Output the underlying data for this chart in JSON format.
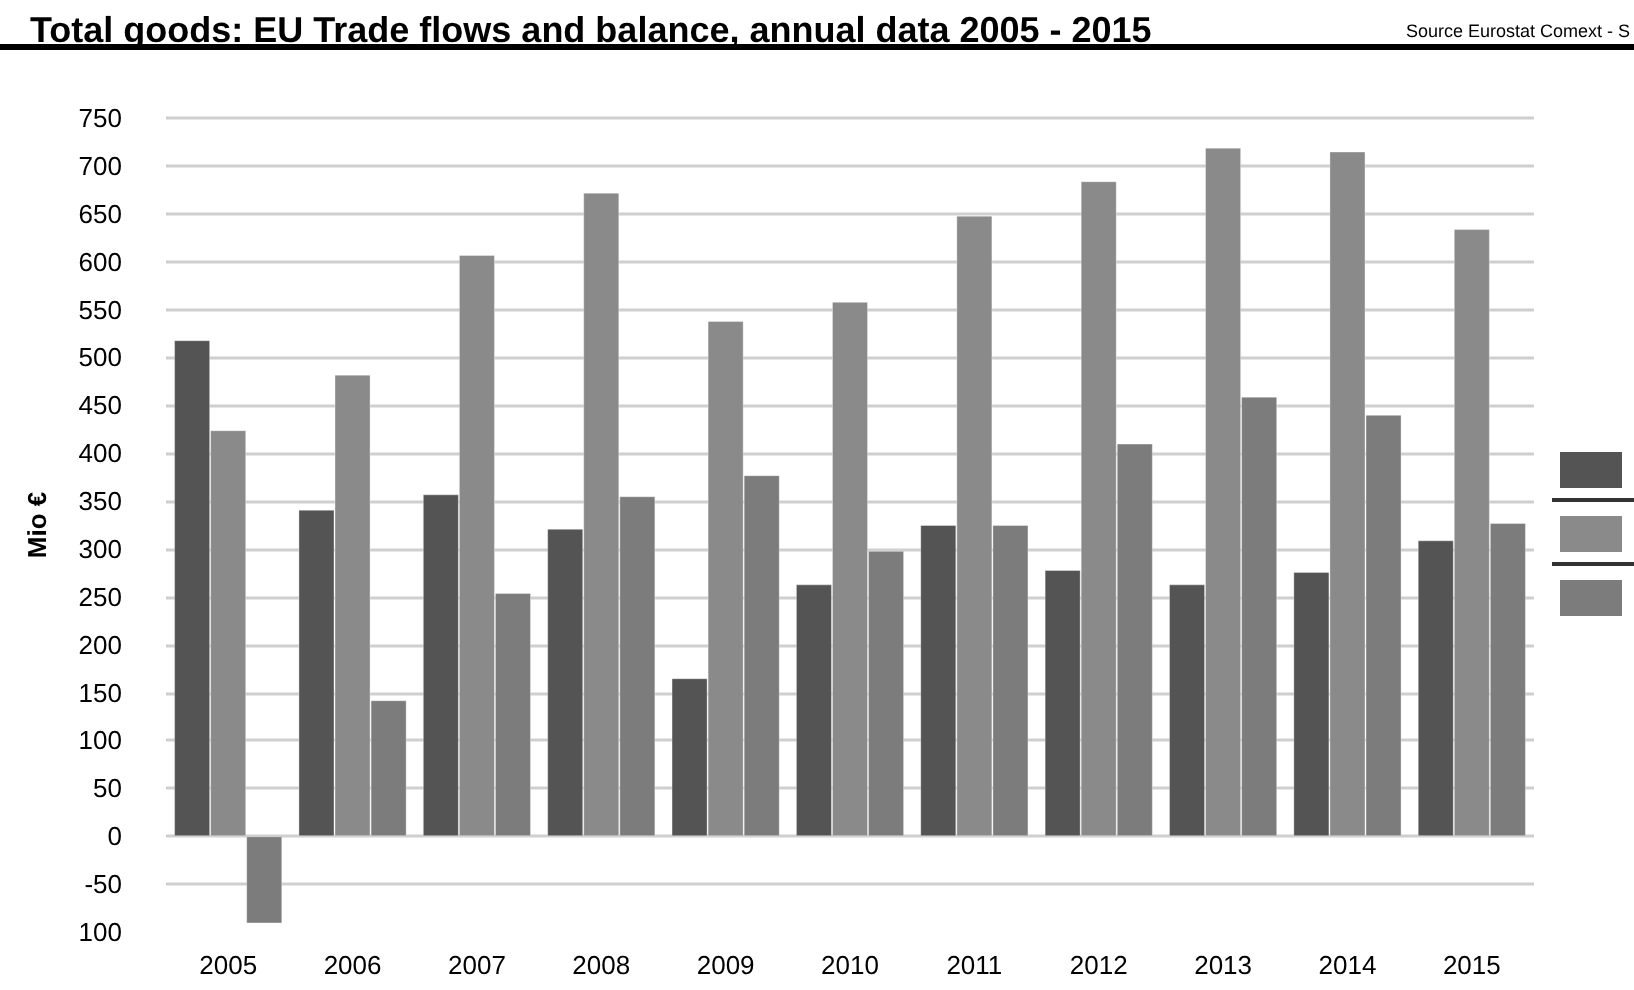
{
  "chart_data": {
    "type": "bar",
    "title": "Total goods: EU Trade flows and balance, annual data 2005 - 2015",
    "ylabel": "Mio €",
    "annotations": [
      "Source Eurostat Comext - S"
    ],
    "categories": [
      "2005",
      "2006",
      "2007",
      "2008",
      "2009",
      "2010",
      "2011",
      "2012",
      "2013",
      "2014",
      "2015"
    ],
    "series": [
      {
        "color": "#545454",
        "values": [
          518,
          341,
          357,
          321,
          165,
          263,
          325,
          278,
          263,
          276,
          309
        ]
      },
      {
        "color": "#8a8a8a",
        "values": [
          424,
          482,
          607,
          672,
          538,
          558,
          648,
          684,
          719,
          715,
          634
        ]
      },
      {
        "color": "#7c7c7c",
        "values": [
          -91,
          142,
          254,
          355,
          377,
          298,
          325,
          410,
          459,
          440,
          327
        ]
      }
    ],
    "ylim": [
      -100,
      750
    ],
    "yticks": [
      {
        "value": -100,
        "label": "100"
      },
      -50,
      0,
      50,
      100,
      150,
      200,
      250,
      300,
      350,
      400,
      450,
      500,
      550,
      600,
      650,
      700,
      750
    ],
    "grid": "y"
  }
}
